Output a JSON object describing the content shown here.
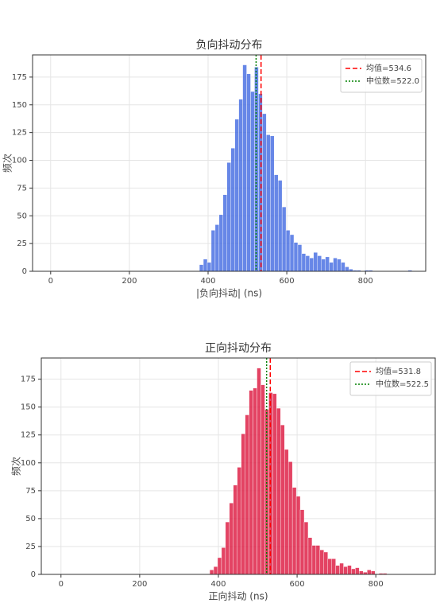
{
  "chart_data": [
    {
      "type": "histogram",
      "title": "负向抖动分布",
      "xlabel": "|负向抖动| (ns)",
      "ylabel": "频次",
      "bins": [
        378,
        388,
        398,
        408,
        418,
        428,
        438,
        448,
        458,
        468,
        478,
        488,
        498,
        508,
        518,
        528,
        538,
        548,
        558,
        568,
        578,
        588,
        598,
        608,
        618,
        628,
        638,
        648,
        658,
        668,
        678,
        688,
        698,
        708,
        718,
        728,
        738,
        748,
        758,
        768,
        778,
        788,
        798,
        808,
        818,
        828,
        838,
        848,
        858,
        868,
        878,
        888,
        898,
        908,
        918
      ],
      "values": [
        6,
        11,
        8,
        37,
        42,
        51,
        69,
        98,
        111,
        137,
        155,
        186,
        178,
        162,
        184,
        160,
        142,
        123,
        122,
        87,
        82,
        58,
        37,
        33,
        26,
        24,
        16,
        14,
        12,
        17,
        14,
        11,
        13,
        8,
        12,
        11,
        8,
        4,
        2,
        1,
        1,
        0,
        1,
        1,
        0,
        0,
        0,
        0,
        0,
        0,
        0,
        0,
        0,
        1
      ],
      "color": "#4169e1",
      "xlim": [
        -46,
        953
      ],
      "ylim": [
        0,
        195
      ],
      "xticks": [
        0,
        200,
        400,
        600,
        800
      ],
      "yticks": [
        0,
        25,
        50,
        75,
        100,
        125,
        150,
        175
      ],
      "grid": true,
      "legend": "upper right",
      "vlines": [
        {
          "name": "均值=534.6",
          "value": 534.6,
          "color": "#ff0000",
          "style": "dashed"
        },
        {
          "name": "中位数=522.0",
          "value": 522.0,
          "color": "#008000",
          "style": "dotted"
        }
      ]
    },
    {
      "type": "histogram",
      "title": "正向抖动分布",
      "xlabel": "正向抖动 (ns)",
      "ylabel": "频次",
      "bins": [
        378,
        388,
        398,
        408,
        418,
        428,
        438,
        448,
        458,
        468,
        478,
        488,
        498,
        508,
        518,
        528,
        538,
        548,
        558,
        568,
        578,
        588,
        598,
        608,
        618,
        628,
        638,
        648,
        658,
        668,
        678,
        688,
        698,
        708,
        718,
        728,
        738,
        748,
        758,
        768,
        778,
        788,
        798,
        808,
        818,
        828
      ],
      "values": [
        4,
        7,
        15,
        24,
        47,
        64,
        80,
        96,
        126,
        143,
        165,
        167,
        185,
        170,
        148,
        163,
        162,
        149,
        134,
        112,
        101,
        78,
        70,
        58,
        47,
        33,
        26,
        26,
        22,
        20,
        14,
        14,
        8,
        10,
        7,
        8,
        5,
        6,
        3,
        2,
        4,
        3,
        0,
        1,
        1
      ],
      "color": "#dc143c",
      "xlim": [
        -50,
        951
      ],
      "ylim": [
        0,
        194
      ],
      "xticks": [
        0,
        200,
        400,
        600,
        800
      ],
      "yticks": [
        0,
        25,
        50,
        75,
        100,
        125,
        150,
        175
      ],
      "grid": true,
      "legend": "upper right",
      "vlines": [
        {
          "name": "均值=531.8",
          "value": 531.8,
          "color": "#ff0000",
          "style": "dashed"
        },
        {
          "name": "中位数=522.5",
          "value": 522.5,
          "color": "#008000",
          "style": "dotted"
        }
      ]
    }
  ]
}
